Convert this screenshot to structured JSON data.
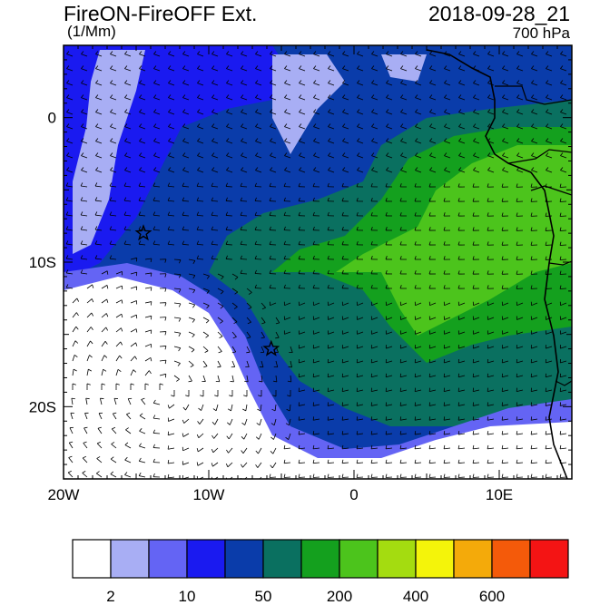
{
  "header": {
    "title": "FireON-FireOFF Ext.",
    "units": "(1/Mm)",
    "datetime": "2018-09-28_21",
    "level": "700 hPa"
  },
  "axes": {
    "x_ticks": [
      {
        "value": -20,
        "label": "20W"
      },
      {
        "value": -10,
        "label": "10W"
      },
      {
        "value": 0,
        "label": "0"
      },
      {
        "value": 10,
        "label": "10E"
      }
    ],
    "y_ticks": [
      {
        "value": 0,
        "label": "0"
      },
      {
        "value": -10,
        "label": "10S"
      },
      {
        "value": -20,
        "label": "20S"
      }
    ],
    "lon_range": [
      -20,
      15
    ],
    "lat_range": [
      -25,
      5
    ]
  },
  "colorbar": {
    "colors": [
      "#ffffff",
      "#a8aef4",
      "#6464f4",
      "#1a1af0",
      "#0a3caa",
      "#0a7060",
      "#14a01e",
      "#4cc41c",
      "#a4dc10",
      "#f4f40a",
      "#f4aa0a",
      "#f45a0a",
      "#f41414"
    ],
    "labels": [
      {
        "text": "2",
        "after_index": 0
      },
      {
        "text": "10",
        "after_index": 2
      },
      {
        "text": "50",
        "after_index": 4
      },
      {
        "text": "200",
        "after_index": 6
      },
      {
        "text": "400",
        "after_index": 8
      },
      {
        "text": "600",
        "after_index": 10
      }
    ]
  },
  "markers": [
    {
      "name": "star-marker",
      "lon": -14.5,
      "lat": -8
    },
    {
      "name": "star-marker",
      "lon": -5.7,
      "lat": -16
    }
  ],
  "colors": {
    "white": "#ffffff",
    "light_blue": "#a8aef4",
    "mid_blue": "#6464f4",
    "blue": "#1a1af0",
    "dark_blue": "#0a3caa",
    "teal": "#0a7060",
    "green": "#14a01e",
    "light_green": "#4cc41c",
    "lime": "#a4dc10"
  }
}
